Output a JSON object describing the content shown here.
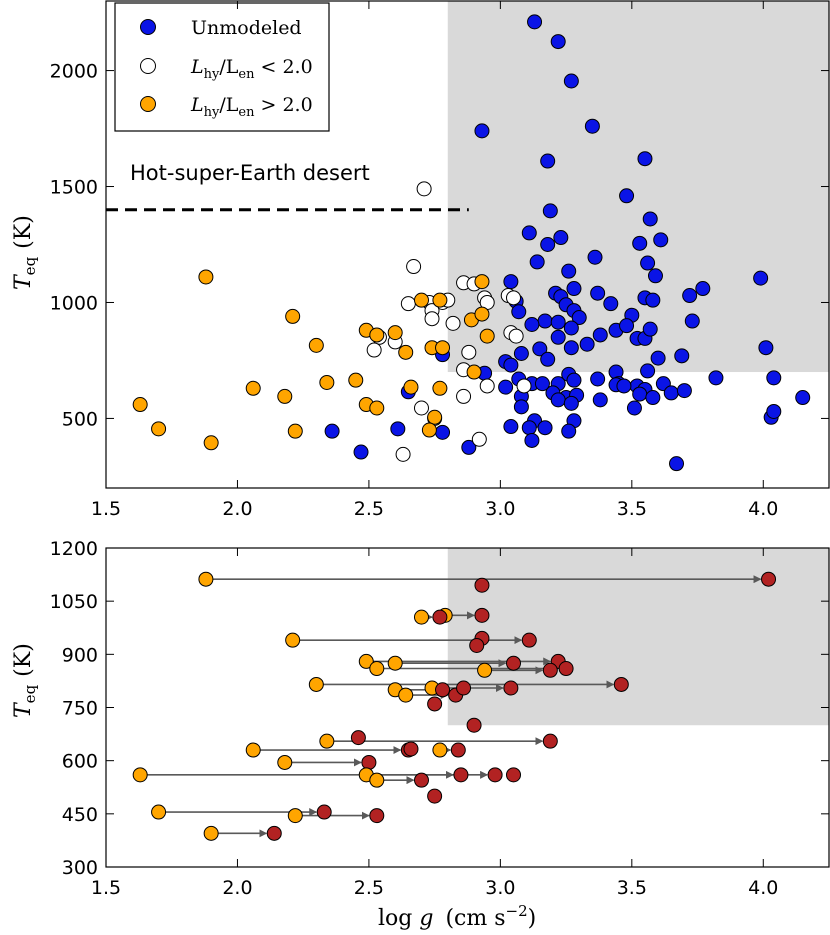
{
  "chart_data": [
    {
      "type": "scatter",
      "xlim": [
        1.5,
        4.25
      ],
      "ylim": [
        200,
        2300
      ],
      "xticks": [
        "1.5",
        "2.0",
        "2.5",
        "3.0",
        "3.5",
        "4.0"
      ],
      "yticks": [
        "500",
        "1000",
        "1500",
        "2000"
      ],
      "ylabel": {
        "main": "T",
        "sub": "eq",
        "unit": "(K)"
      },
      "shaded_region": {
        "x_from": 2.8,
        "y_from": 700
      },
      "desert": {
        "label": "Hot-super-Earth desert",
        "y": 1400,
        "x_from": 1.5,
        "x_to": 2.88
      },
      "legend": {
        "position": "top-left",
        "entries": [
          {
            "key": "unmodeled",
            "label": "Unmodeled",
            "main": "Unmodeled"
          },
          {
            "key": "low",
            "label": "Lhy/Len<2.0",
            "main": "L",
            "sub1": "hy",
            "mid": "/L",
            "sub2": "en",
            "op": " < ",
            "value": "2.0"
          },
          {
            "key": "high",
            "label": "Lhy/Len>2.0",
            "main": "L",
            "sub1": "hy",
            "mid": "/L",
            "sub2": "en",
            "op": " > ",
            "value": "2.0"
          }
        ]
      },
      "colors": {
        "unmodeled": "#0a14e6",
        "low": "#ffffff",
        "high": "#ffa500"
      },
      "series": [
        {
          "name": "Unmodeled",
          "key": "unmodeled",
          "points": [
            [
              3.13,
              2210
            ],
            [
              3.22,
              2125
            ],
            [
              3.27,
              1955
            ],
            [
              2.93,
              1740
            ],
            [
              3.35,
              1760
            ],
            [
              3.55,
              1620
            ],
            [
              3.18,
              1610
            ],
            [
              3.48,
              1460
            ],
            [
              3.19,
              1395
            ],
            [
              3.11,
              1300
            ],
            [
              3.57,
              1360
            ],
            [
              3.23,
              1280
            ],
            [
              3.18,
              1250
            ],
            [
              3.36,
              1195
            ],
            [
              3.14,
              1175
            ],
            [
              3.53,
              1255
            ],
            [
              3.61,
              1270
            ],
            [
              3.26,
              1135
            ],
            [
              3.56,
              1170
            ],
            [
              3.04,
              1090
            ],
            [
              3.59,
              1115
            ],
            [
              3.28,
              1060
            ],
            [
              3.21,
              1040
            ],
            [
              3.37,
              1040
            ],
            [
              3.23,
              1025
            ],
            [
              3.06,
              1005
            ],
            [
              3.25,
              990
            ],
            [
              3.28,
              965
            ],
            [
              3.42,
              995
            ],
            [
              3.55,
              1020
            ],
            [
              3.72,
              1030
            ],
            [
              3.77,
              1060
            ],
            [
              3.99,
              1105
            ],
            [
              3.07,
              960
            ],
            [
              3.3,
              935
            ],
            [
              3.5,
              945
            ],
            [
              3.58,
              1010
            ],
            [
              3.73,
              920
            ],
            [
              3.17,
              920
            ],
            [
              3.22,
              915
            ],
            [
              3.12,
              905
            ],
            [
              3.27,
              890
            ],
            [
              3.44,
              880
            ],
            [
              3.48,
              900
            ],
            [
              3.52,
              845
            ],
            [
              3.55,
              845
            ],
            [
              3.57,
              885
            ],
            [
              3.38,
              860
            ],
            [
              3.33,
              820
            ],
            [
              3.22,
              850
            ],
            [
              3.27,
              805
            ],
            [
              3.15,
              800
            ],
            [
              3.08,
              780
            ],
            [
              3.02,
              745
            ],
            [
              3.04,
              730
            ],
            [
              3.18,
              755
            ],
            [
              3.44,
              700
            ],
            [
              3.56,
              705
            ],
            [
              3.6,
              760
            ],
            [
              3.69,
              770
            ],
            [
              2.94,
              695
            ],
            [
              3.07,
              670
            ],
            [
              3.12,
              650
            ],
            [
              3.16,
              650
            ],
            [
              3.22,
              650
            ],
            [
              3.26,
              690
            ],
            [
              3.28,
              665
            ],
            [
              3.37,
              670
            ],
            [
              3.45,
              650
            ],
            [
              3.52,
              640
            ],
            [
              3.55,
              625
            ],
            [
              3.62,
              650
            ],
            [
              3.65,
              610
            ],
            [
              3.82,
              675
            ],
            [
              4.04,
              675
            ],
            [
              4.01,
              805
            ],
            [
              3.02,
              635
            ],
            [
              3.08,
              595
            ],
            [
              3.2,
              610
            ],
            [
              3.25,
              590
            ],
            [
              3.29,
              600
            ],
            [
              3.38,
              580
            ],
            [
              3.44,
              645
            ],
            [
              3.47,
              640
            ],
            [
              3.53,
              605
            ],
            [
              3.58,
              590
            ],
            [
              3.7,
              620
            ],
            [
              3.22,
              580
            ],
            [
              3.27,
              565
            ],
            [
              3.08,
              550
            ],
            [
              3.28,
              490
            ],
            [
              3.13,
              490
            ],
            [
              3.17,
              460
            ],
            [
              3.26,
              445
            ],
            [
              3.51,
              545
            ],
            [
              3.11,
              460
            ],
            [
              3.04,
              465
            ],
            [
              3.12,
              405
            ],
            [
              4.03,
              505
            ],
            [
              4.04,
              530
            ],
            [
              4.15,
              590
            ],
            [
              3.67,
              305
            ],
            [
              2.78,
              775
            ],
            [
              2.78,
              440
            ],
            [
              2.88,
              375
            ],
            [
              2.61,
              455
            ],
            [
              2.36,
              445
            ],
            [
              2.47,
              355
            ],
            [
              2.65,
              615
            ]
          ]
        },
        {
          "name": "Lhy/Len<2.0",
          "key": "low",
          "points": [
            [
              2.71,
              1490
            ],
            [
              2.67,
              1155
            ],
            [
              2.86,
              1085
            ],
            [
              2.9,
              1080
            ],
            [
              2.65,
              995
            ],
            [
              2.73,
              1000
            ],
            [
              2.78,
              1000
            ],
            [
              2.8,
              1010
            ],
            [
              2.94,
              1020
            ],
            [
              3.03,
              1030
            ],
            [
              2.95,
              1000
            ],
            [
              3.05,
              1020
            ],
            [
              2.74,
              965
            ],
            [
              2.74,
              930
            ],
            [
              2.82,
              910
            ],
            [
              3.04,
              870
            ],
            [
              3.06,
              855
            ],
            [
              2.54,
              850
            ],
            [
              2.6,
              830
            ],
            [
              2.52,
              795
            ],
            [
              2.88,
              785
            ],
            [
              2.86,
              710
            ],
            [
              2.95,
              640
            ],
            [
              3.09,
              640
            ],
            [
              2.86,
              595
            ],
            [
              2.7,
              545
            ],
            [
              2.75,
              500
            ],
            [
              2.92,
              410
            ],
            [
              2.63,
              345
            ]
          ]
        },
        {
          "name": "Lhy/Len>2.0",
          "key": "high",
          "points": [
            [
              1.88,
              1110
            ],
            [
              2.93,
              1090
            ],
            [
              2.77,
              1010
            ],
            [
              2.7,
              1010
            ],
            [
              2.21,
              940
            ],
            [
              2.89,
              925
            ],
            [
              2.93,
              950
            ],
            [
              2.49,
              880
            ],
            [
              2.6,
              870
            ],
            [
              2.53,
              860
            ],
            [
              2.95,
              855
            ],
            [
              2.3,
              815
            ],
            [
              2.64,
              785
            ],
            [
              2.74,
              805
            ],
            [
              2.78,
              805
            ],
            [
              2.9,
              700
            ],
            [
              2.06,
              630
            ],
            [
              2.34,
              655
            ],
            [
              2.66,
              635
            ],
            [
              2.77,
              630
            ],
            [
              2.45,
              665
            ],
            [
              2.18,
              595
            ],
            [
              1.63,
              560
            ],
            [
              2.49,
              560
            ],
            [
              2.53,
              545
            ],
            [
              2.75,
              505
            ],
            [
              2.73,
              450
            ],
            [
              2.22,
              445
            ],
            [
              1.7,
              455
            ],
            [
              1.9,
              395
            ]
          ]
        }
      ]
    },
    {
      "type": "scatter",
      "xlim": [
        1.5,
        4.25
      ],
      "ylim": [
        300,
        1200
      ],
      "xticks": [
        "1.5",
        "2.0",
        "2.5",
        "3.0",
        "3.5",
        "4.0"
      ],
      "yticks": [
        "300",
        "450",
        "600",
        "750",
        "900",
        "1050",
        "1200"
      ],
      "xlabel": {
        "main": "log g",
        "g": "g",
        "unit": "(cm s",
        "exp": "−2",
        "close": ")"
      },
      "ylabel": {
        "main": "T",
        "sub": "eq",
        "unit": "(K)"
      },
      "shaded_region": {
        "x_from": 2.8,
        "y_from": 700
      },
      "colors": {
        "start": "#ffa500",
        "end": "#b22222",
        "arrow": "#595959"
      },
      "arrows": [
        {
          "from": [
            1.88,
            1112
          ],
          "to": [
            4.02,
            1112
          ]
        },
        {
          "from": [
            2.93,
            1095
          ],
          "to": [
            2.93,
            1095
          ]
        },
        {
          "from": [
            2.79,
            1010
          ],
          "to": [
            2.93,
            1010
          ]
        },
        {
          "from": [
            2.7,
            1005
          ],
          "to": [
            2.77,
            1005
          ]
        },
        {
          "from": [
            2.21,
            940
          ],
          "to": [
            3.11,
            940
          ]
        },
        {
          "from": [
            2.93,
            945
          ],
          "to": [
            2.93,
            945
          ]
        },
        {
          "from": [
            2.91,
            925
          ],
          "to": [
            2.91,
            925
          ]
        },
        {
          "from": [
            2.49,
            880
          ],
          "to": [
            3.22,
            880
          ]
        },
        {
          "from": [
            2.6,
            875
          ],
          "to": [
            3.05,
            875
          ]
        },
        {
          "from": [
            2.53,
            860
          ],
          "to": [
            3.25,
            860
          ]
        },
        {
          "from": [
            2.94,
            855
          ],
          "to": [
            3.19,
            855
          ]
        },
        {
          "from": [
            2.3,
            815
          ],
          "to": [
            3.46,
            815
          ]
        },
        {
          "from": [
            2.74,
            805
          ],
          "to": [
            3.04,
            805
          ]
        },
        {
          "from": [
            2.6,
            800
          ],
          "to": [
            2.78,
            800
          ]
        },
        {
          "from": [
            2.64,
            785
          ],
          "to": [
            2.83,
            785
          ]
        },
        {
          "from": [
            2.86,
            805
          ],
          "to": [
            2.86,
            805
          ]
        },
        {
          "from": [
            2.75,
            760
          ],
          "to": [
            2.75,
            760
          ]
        },
        {
          "from": [
            2.9,
            700
          ],
          "to": [
            2.9,
            700
          ]
        },
        {
          "from": [
            2.06,
            630
          ],
          "to": [
            2.65,
            630
          ]
        },
        {
          "from": [
            2.34,
            655
          ],
          "to": [
            3.19,
            655
          ]
        },
        {
          "from": [
            2.46,
            665
          ],
          "to": [
            2.46,
            665
          ]
        },
        {
          "from": [
            2.77,
            630
          ],
          "to": [
            2.84,
            630
          ]
        },
        {
          "from": [
            2.66,
            633
          ],
          "to": [
            2.66,
            633
          ]
        },
        {
          "from": [
            2.18,
            595
          ],
          "to": [
            2.5,
            595
          ]
        },
        {
          "from": [
            1.63,
            560
          ],
          "to": [
            2.98,
            560
          ]
        },
        {
          "from": [
            2.49,
            560
          ],
          "to": [
            2.85,
            560
          ]
        },
        {
          "from": [
            2.53,
            545
          ],
          "to": [
            2.7,
            545
          ]
        },
        {
          "from": [
            3.05,
            560
          ],
          "to": [
            3.05,
            560
          ]
        },
        {
          "from": [
            2.75,
            500
          ],
          "to": [
            2.75,
            500
          ]
        },
        {
          "from": [
            2.22,
            445
          ],
          "to": [
            2.53,
            445
          ]
        },
        {
          "from": [
            1.7,
            455
          ],
          "to": [
            2.33,
            455
          ]
        },
        {
          "from": [
            1.9,
            395
          ],
          "to": [
            2.14,
            395
          ]
        }
      ]
    }
  ]
}
